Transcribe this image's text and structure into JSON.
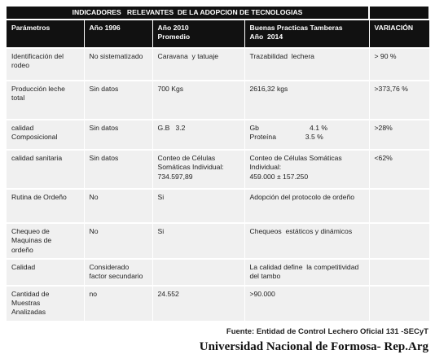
{
  "table": {
    "title": "INDICADORES   RELEVANTES  DE LA ADOPCION DE TECNOLOGIAS",
    "header": [
      "Parámetros",
      "Año 1996",
      "Año 2010\nPromedio",
      "Buenas Practicas Tamberas\nAño  2014",
      "VARIACIÓN"
    ],
    "rows": [
      [
        "Identificación del\nrodeo",
        "No sistematizado",
        "Caravana  y tatuaje",
        "Trazabilidad  lechera",
        "> 90 %"
      ],
      [
        "Producción leche\ntotal",
        "Sin datos",
        "700 Kgs",
        "2616,32 kgs",
        ">373,76 %"
      ],
      [
        "calidad\nComposicional",
        "Sin datos",
        "G.B   3.2",
        "Gb                          4.1 %\nProteína               3.5 %",
        ">28%"
      ],
      [
        "calidad sanitaria",
        "Sin datos",
        "Conteo de Células\nSomáticas Individual:\n734.597,89",
        "Conteo de Células Somáticas\nIndividual:\n459.000 ± 157.250",
        "<62%"
      ],
      [
        "Rutina de Ordeño",
        "No",
        "Si",
        "Adopción del protocolo de ordeño",
        ""
      ],
      [
        "Chequeo de\nMaquinas de\nordeño",
        "No",
        "Si",
        "Chequeos  estáticos y dinámicos",
        ""
      ],
      [
        "Calidad",
        "Considerado\nfactor secundario",
        "",
        "La calidad define  la competitividad\ndel tambo",
        ""
      ],
      [
        "Cantidad de\nMuestras\nAnalizadas",
        "no",
        "24.552",
        ">90.000",
        ""
      ]
    ],
    "source": "Fuente: Entidad de Control  Lechero Oficial 131  -SECyT",
    "institution": "Universidad Nacional de Formosa- Rep.Arg"
  }
}
